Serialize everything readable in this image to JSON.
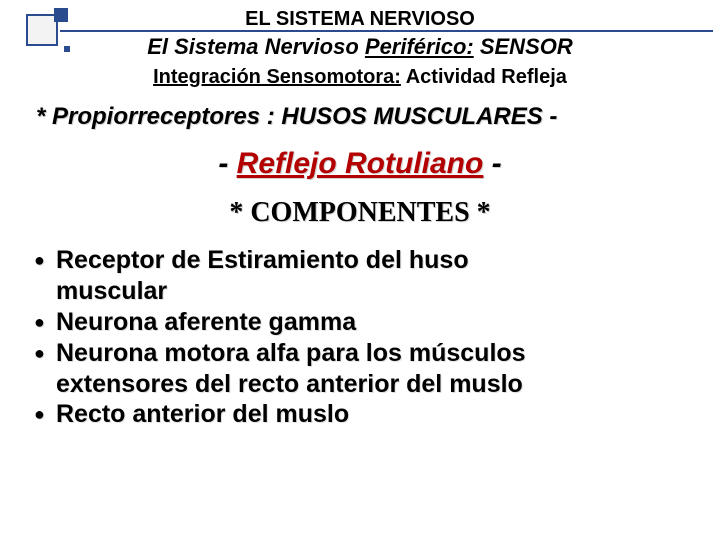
{
  "colors": {
    "accent": "#2a4b8d",
    "red": "#b30000",
    "text": "#000000",
    "background": "#ffffff",
    "shadow": "#d0d0d0"
  },
  "typography": {
    "main_family": "Arial, Helvetica, sans-serif",
    "serif_family": "Times New Roman, Times, serif",
    "line1_size": 20,
    "line2_size": 22,
    "line3_size": 20,
    "line4_size": 24,
    "line5_size": 30,
    "line6_size": 28,
    "bullet_size": 25
  },
  "header": {
    "line1": "EL SISTEMA NERVIOSO",
    "line2_pre": "El Sistema Nervioso ",
    "line2_u": "Periférico:",
    "line2_post": " SENSOR",
    "line3_pre": "Integración Sensomotora:",
    "line3_post": " Actividad Refleja"
  },
  "sub": {
    "prop": "* Propiorreceptores : HUSOS MUSCULARES -",
    "reflejo_pre": "- ",
    "reflejo_red": "Reflejo Rotuliano",
    "reflejo_post": " -",
    "componentes": "* COMPONENTES *"
  },
  "bullets": [
    [
      "Receptor de Estiramiento del huso",
      "muscular"
    ],
    [
      "Neurona aferente gamma"
    ],
    [
      "Neurona motora alfa para los músculos",
      "extensores del recto anterior del muslo"
    ],
    [
      "Recto anterior del muslo"
    ]
  ]
}
